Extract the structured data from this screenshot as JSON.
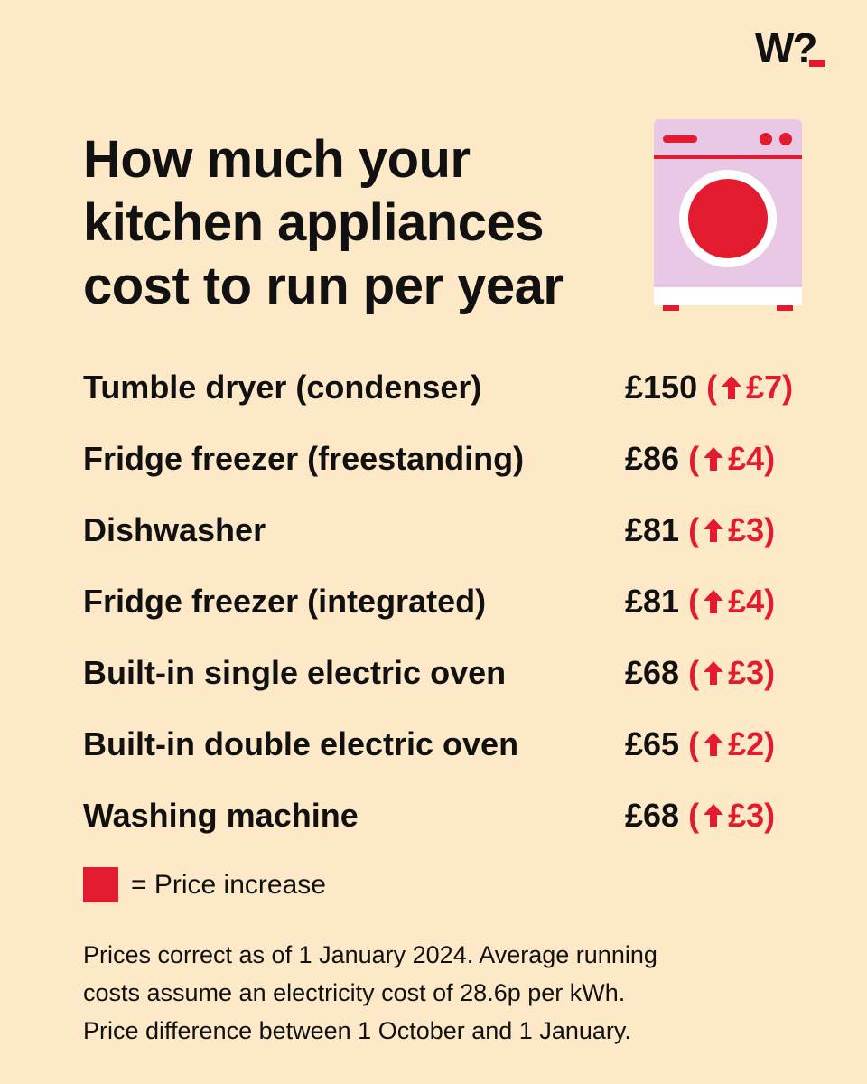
{
  "brand": {
    "logo_text": "W?",
    "accent": "#e31b2f",
    "background": "#fde9c7"
  },
  "title_lines": [
    "How much your",
    "kitchen appliances",
    "cost to run per year"
  ],
  "illustration": {
    "icon": "washing-machine-icon",
    "body_color": "#e9c8e6",
    "drum_color": "#e31b2f"
  },
  "appliances": [
    {
      "name": "Tumble dryer (condenser)",
      "cost": "£150",
      "open": "(",
      "increase": "£7",
      "close": ")"
    },
    {
      "name": "Fridge freezer (freestanding)",
      "cost": "£86",
      "open": "(",
      "increase": "£4",
      "close": ")"
    },
    {
      "name": "Dishwasher",
      "cost": "£81",
      "open": "(",
      "increase": "£3",
      "close": ")"
    },
    {
      "name": "Fridge freezer (integrated)",
      "cost": "£81",
      "open": "(",
      "increase": "£4",
      "close": ")"
    },
    {
      "name": "Built-in single electric oven",
      "cost": "£68",
      "open": "(",
      "increase": "£3",
      "close": ")"
    },
    {
      "name": "Built-in double electric oven",
      "cost": "£65",
      "open": "(",
      "increase": "£2",
      "close": ")"
    },
    {
      "name": "Washing machine",
      "cost": "£68",
      "open": "(",
      "increase": "£3",
      "close": ")"
    }
  ],
  "legend": {
    "label": "= Price increase",
    "icon": "red-square-icon"
  },
  "footnote_lines": [
    "Prices correct as of 1 January 2024. Average running",
    "costs assume an electricity cost of 28.6p per kWh.",
    "Price difference between 1 October and 1 January."
  ]
}
